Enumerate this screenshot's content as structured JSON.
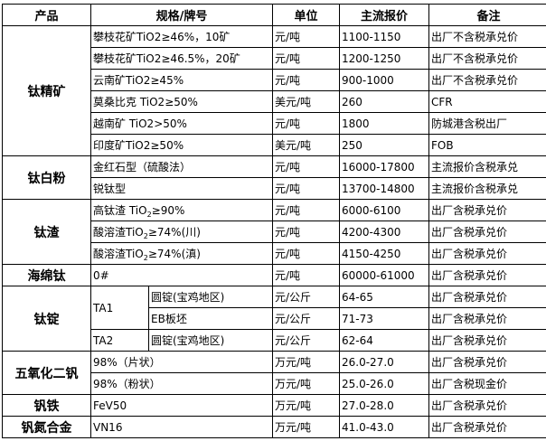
{
  "headers": [
    "产品",
    "规格/牌号",
    "单位",
    "主流报价",
    "备注"
  ],
  "groups": [
    {
      "category": "钛精矿",
      "rows": [
        {
          "spec": "攀枝花矿TiO2≥46%，10矿",
          "unit": "元/吨",
          "price": "1100-1150",
          "note": "出厂不含税承兑价"
        },
        {
          "spec": "攀枝花矿TiO2≥46.5%，20矿",
          "unit": "元/吨",
          "price": "1200-1250",
          "note": "出厂不含税承兑价"
        },
        {
          "spec": "云南矿TiO2≥45%",
          "unit": "元/吨",
          "price": "900-1000",
          "note": "出厂不含税承兑价"
        },
        {
          "spec": "莫桑比克 TiO2≥50%",
          "unit": "美元/吨",
          "price": "260",
          "note": "CFR"
        },
        {
          "spec": "越南矿 TiO2>50%",
          "unit": "元/吨",
          "price": "1800",
          "note": "防城港含税出厂"
        },
        {
          "spec": "印度矿TiO2≥50%",
          "unit": "美元/吨",
          "price": "250",
          "note": "FOB"
        }
      ]
    },
    {
      "category": "钛白粉",
      "rows": [
        {
          "spec": "金红石型（硫酸法）",
          "unit": "元/吨",
          "price": "16000-17800",
          "note": "主流报价含税承兑"
        },
        {
          "spec": "锐钛型",
          "unit": "元/吨",
          "price": "13700-14800",
          "note": "主流报价含税承兑"
        }
      ]
    },
    {
      "category": "钛渣",
      "rows": [
        {
          "spec_pre": "高钛渣 TiO",
          "spec_sub": "2",
          "spec_post": "≥90%",
          "unit": "元/吨",
          "price": "6000-6100",
          "note": "出厂含税承兑价"
        },
        {
          "spec_pre": "酸溶渣TiO",
          "spec_sub": "2",
          "spec_post": "≥74%(川)",
          "unit": "元/吨",
          "price": "4200-4300",
          "note": "出厂含税承兑价"
        },
        {
          "spec_pre": "酸溶渣TiO",
          "spec_sub": "2",
          "spec_post": "≥74%(滇)",
          "unit": "元/吨",
          "price": "4150-4250",
          "note": "出厂含税承兑价"
        }
      ]
    },
    {
      "category": "海绵钛",
      "rows": [
        {
          "spec": "0#",
          "unit": "元/吨",
          "price": "60000-61000",
          "note": "出厂含税承兑价"
        }
      ]
    },
    {
      "category": "钛锭",
      "rows": [
        {
          "grade": "TA1",
          "spec": "圆锭(宝鸡地区)",
          "unit": "元/公斤",
          "price": "64-65",
          "note": "出厂含税承兑价"
        },
        {
          "spec": "EB板坯",
          "unit": "元/公斤",
          "price": "71-73",
          "note": "出厂含税承兑价"
        },
        {
          "grade": "TA2",
          "spec": "圆锭(宝鸡地区)",
          "unit": "元/公斤",
          "price": "62-64",
          "note": "出厂含税承兑价"
        }
      ]
    },
    {
      "category": "五氧化二钒",
      "rows": [
        {
          "spec": "98%（片状）",
          "unit": "万元/吨",
          "price": "26.0-27.0",
          "note": "出厂含税承兑价"
        },
        {
          "spec": "98%（粉状）",
          "unit": "万元/吨",
          "price": "25.0-26.0",
          "note": "出厂含税现金价"
        }
      ]
    },
    {
      "category": "钒铁",
      "rows": [
        {
          "spec": "FeV50",
          "unit": "万元/吨",
          "price": "27.0-28.0",
          "note": "出厂含税承兑价"
        }
      ]
    },
    {
      "category": "钒氮合金",
      "rows": [
        {
          "spec": "VN16",
          "unit": "万元/吨",
          "price": "41.0-43.0",
          "note": "出厂含税承兑价"
        }
      ]
    }
  ]
}
